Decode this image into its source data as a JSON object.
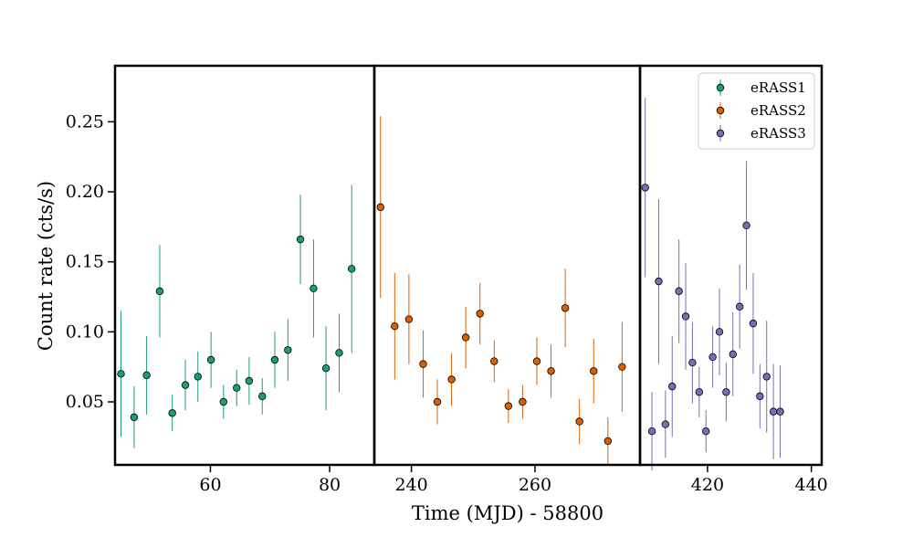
{
  "chart_data": {
    "type": "scatter",
    "title": "",
    "xlabel": "Time (MJD) - 58800",
    "ylabel": "Count rate (cts/s)",
    "ylim": [
      0.005,
      0.29
    ],
    "yticks": [
      0.05,
      0.1,
      0.15,
      0.2,
      0.25
    ],
    "ytick_labels": [
      "0.05",
      "0.10",
      "0.15",
      "0.20",
      "0.25"
    ],
    "legend_position": "top-right",
    "grid": false,
    "panels": [
      {
        "xlim": [
          44,
          87.5
        ],
        "xticks": [
          60,
          80
        ],
        "xtick_labels": [
          "60",
          "80"
        ]
      },
      {
        "xlim": [
          234,
          277
        ],
        "xticks": [
          240,
          260
        ],
        "xtick_labels": [
          "240",
          "260"
        ]
      },
      {
        "xlim": [
          407,
          442
        ],
        "xticks": [
          420,
          440
        ],
        "xtick_labels": [
          "420",
          "440"
        ]
      }
    ],
    "series": [
      {
        "name": "eRASS1",
        "color": "#1b9e77",
        "panel": 0,
        "x": [
          45.0,
          47.2,
          49.3,
          51.5,
          53.6,
          55.8,
          57.9,
          60.1,
          62.2,
          64.4,
          66.5,
          68.7,
          70.8,
          73.0,
          75.1,
          77.3,
          79.4,
          81.6,
          83.7
        ],
        "y": [
          0.07,
          0.039,
          0.069,
          0.129,
          0.042,
          0.062,
          0.068,
          0.08,
          0.05,
          0.06,
          0.065,
          0.054,
          0.08,
          0.087,
          0.166,
          0.131,
          0.074,
          0.085,
          0.145
        ],
        "err": [
          0.045,
          0.022,
          0.028,
          0.033,
          0.013,
          0.018,
          0.018,
          0.02,
          0.012,
          0.013,
          0.017,
          0.013,
          0.02,
          0.022,
          0.032,
          0.035,
          0.03,
          0.028,
          0.06
        ]
      },
      {
        "name": "eRASS2",
        "color": "#d95f02",
        "panel": 1,
        "x": [
          235.0,
          237.3,
          239.6,
          241.9,
          244.2,
          246.5,
          248.8,
          251.1,
          253.4,
          255.7,
          258.0,
          260.3,
          262.6,
          264.9,
          267.2,
          269.5,
          271.8,
          274.1
        ],
        "y": [
          0.189,
          0.104,
          0.109,
          0.077,
          0.05,
          0.066,
          0.096,
          0.113,
          0.079,
          0.047,
          0.05,
          0.079,
          0.072,
          0.117,
          0.036,
          0.072,
          0.022,
          0.075
        ],
        "err": [
          0.065,
          0.038,
          0.032,
          0.024,
          0.016,
          0.019,
          0.022,
          0.022,
          0.015,
          0.012,
          0.012,
          0.017,
          0.019,
          0.028,
          0.016,
          0.023,
          0.017,
          0.032
        ]
      },
      {
        "name": "eRASS3",
        "color": "#7570b3",
        "panel": 2,
        "x": [
          408.0,
          409.3,
          410.6,
          411.9,
          413.2,
          414.5,
          415.8,
          417.1,
          418.4,
          419.7,
          421.0,
          422.3,
          423.6,
          424.9,
          426.2,
          427.5,
          428.8,
          430.1,
          431.4,
          432.7,
          434.0
        ],
        "y": [
          0.203,
          0.029,
          0.136,
          0.034,
          0.061,
          0.129,
          0.111,
          0.078,
          0.057,
          0.029,
          0.082,
          0.1,
          0.057,
          0.084,
          0.118,
          0.176,
          0.106,
          0.054,
          0.068,
          0.043,
          0.043
        ],
        "err": [
          0.064,
          0.028,
          0.059,
          0.024,
          0.036,
          0.037,
          0.038,
          0.029,
          0.018,
          0.015,
          0.022,
          0.031,
          0.021,
          0.03,
          0.03,
          0.046,
          0.036,
          0.023,
          0.04,
          0.034,
          0.033
        ]
      }
    ]
  }
}
